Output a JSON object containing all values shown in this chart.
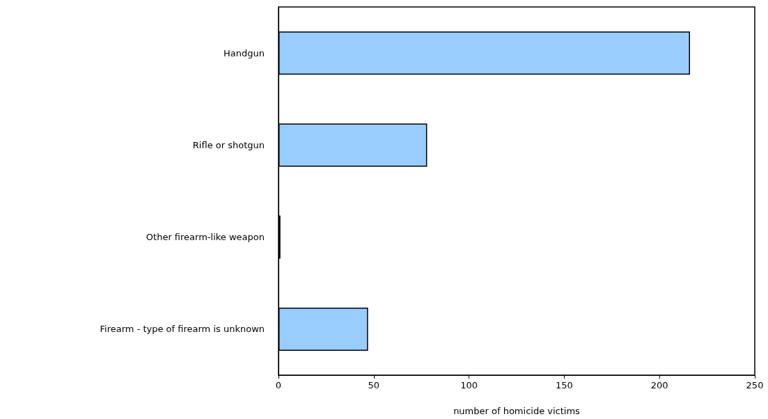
{
  "chart_data": {
    "type": "bar",
    "orientation": "horizontal",
    "categories": [
      "Handgun",
      "Rifle or shotgun",
      "Other firearm-like weapon",
      "Firearm - type of firearm is unknown"
    ],
    "values": [
      216,
      78,
      1,
      47
    ],
    "color": "#99ccff",
    "xlim": [
      0,
      250
    ],
    "xticks": [
      0,
      50,
      100,
      150,
      200,
      250
    ],
    "xlabel": "number of homicide victims"
  }
}
